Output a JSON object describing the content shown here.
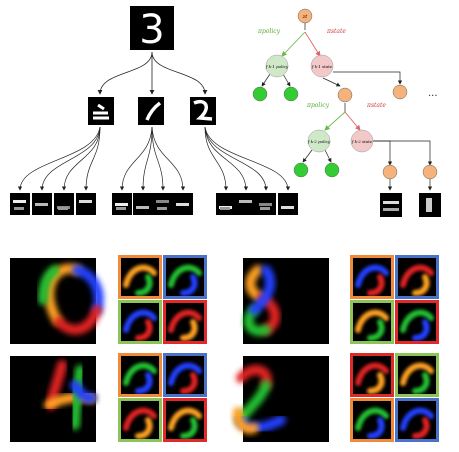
{
  "left_tree": {
    "root_digit": "3"
  },
  "right_tree": {
    "policy_label": "πpolicy",
    "state_label": "πstate",
    "policy_label_2": "πpolicy",
    "state_label_2": "πstate",
    "root_node": "zt",
    "lvl1_policy": "f k-1 policy",
    "lvl1_state": "f k-1 state",
    "lvl2_policy": "f k-2 policy",
    "lvl2_state": "f k-2 state",
    "ellipsis": "..."
  },
  "colors": {
    "orange_node": "#f5b27a",
    "green_node": "#33cc33",
    "policy_node": "#cfe8c8",
    "state_node": "#f2c8c8",
    "policy_arrow": "#66bb44",
    "state_arrow": "#dd6666",
    "frame_orange": "#ef8a3a",
    "frame_blue": "#4a72c8",
    "frame_green": "#8cc45a",
    "frame_red": "#e02a2a",
    "blob_orange": "#ffa020",
    "blob_green": "#20c030",
    "blob_blue": "#2040ff",
    "blob_red": "#e02020"
  },
  "panels": [
    {
      "name": "digit-zero"
    },
    {
      "name": "digit-four"
    },
    {
      "name": "digit-eight"
    },
    {
      "name": "digit-two"
    }
  ]
}
